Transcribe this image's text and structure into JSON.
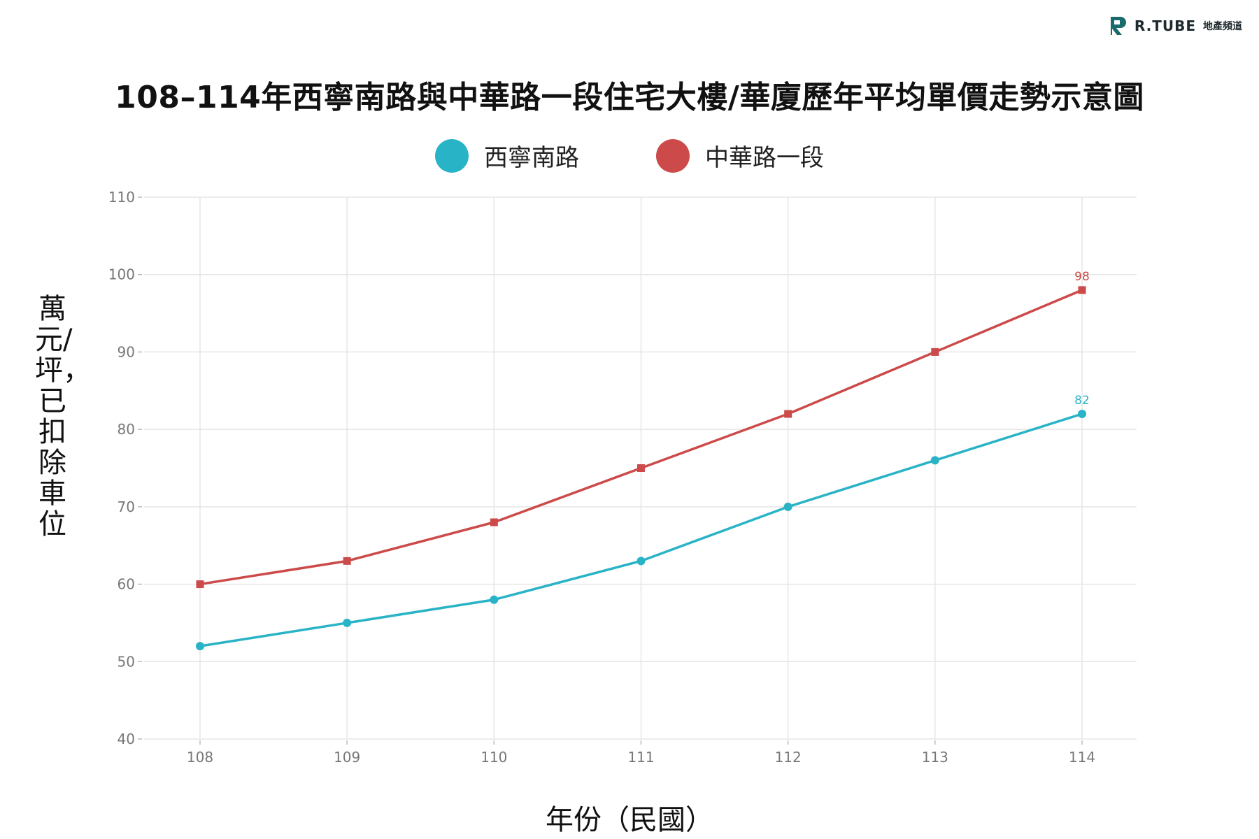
{
  "brand": {
    "name": "R.TUBE",
    "sub": "地產頻道",
    "color": "#1a6b6b"
  },
  "chart_data": {
    "type": "line",
    "title": "108–114年西寧南路與中華路一段住宅大樓/華廈歷年平均單價走勢示意圖",
    "xlabel": "年份（民國）",
    "ylabel": "萬元/坪，已扣除車位",
    "categories": [
      "108",
      "109",
      "110",
      "111",
      "112",
      "113",
      "114"
    ],
    "ylim": [
      40,
      110
    ],
    "yticks": [
      40,
      50,
      60,
      70,
      80,
      90,
      100,
      110
    ],
    "grid": true,
    "legend_position": "top-center",
    "series": [
      {
        "name": "西寧南路",
        "color": "#29b3c6",
        "marker": "circle",
        "values": [
          52,
          55,
          58,
          63,
          70,
          76,
          82
        ],
        "last_label": "82"
      },
      {
        "name": "中華路一段",
        "color": "#cc4a4a",
        "marker": "square",
        "values": [
          60,
          63,
          68,
          75,
          82,
          90,
          98
        ],
        "last_label": "98"
      }
    ]
  }
}
